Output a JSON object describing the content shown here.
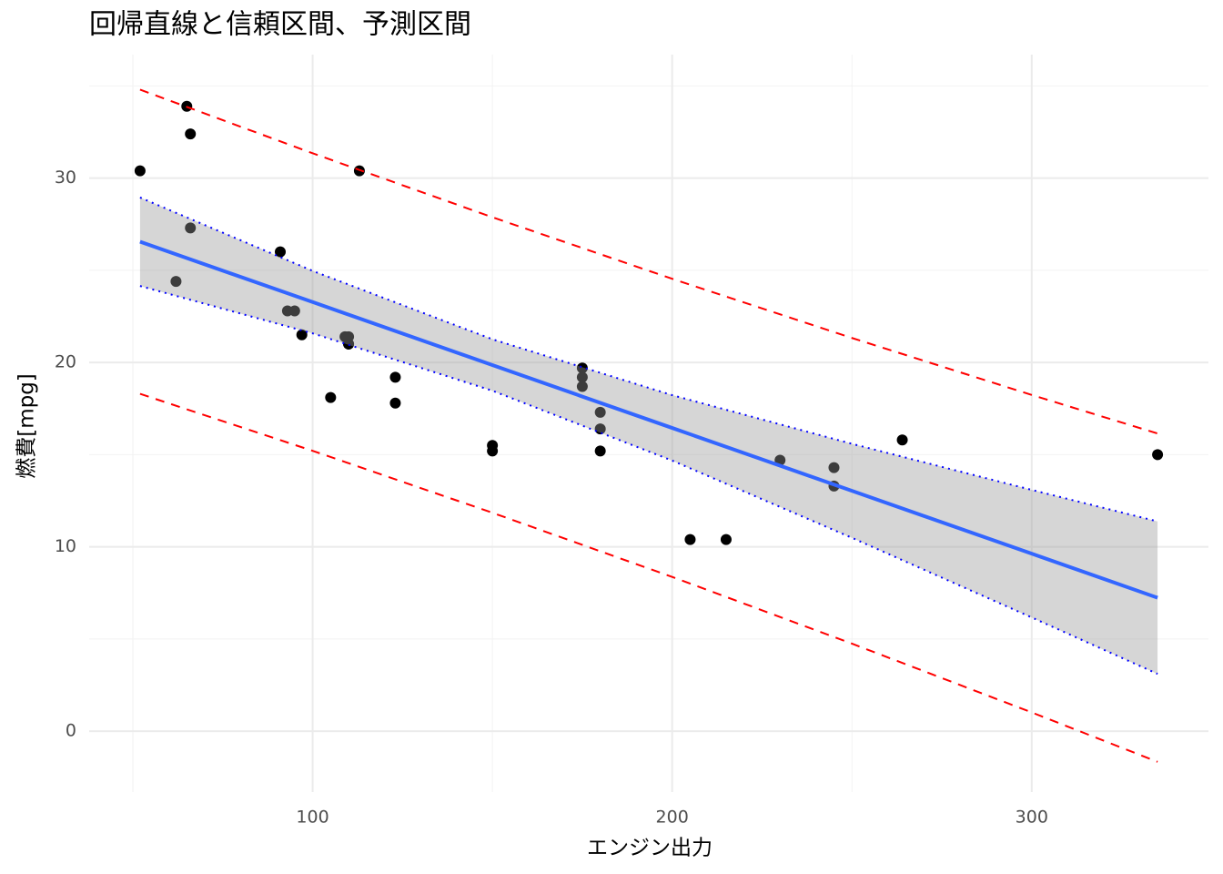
{
  "chart_data": {
    "type": "scatter",
    "title": "回帰直線と信頼区間、予測区間",
    "x_label": "エンジン出力",
    "y_label": "燃費[mpg]",
    "xlim": [
      37.85,
      349.15
    ],
    "ylim": [
      -3.3,
      36.7
    ],
    "xticks": [
      100,
      200,
      300
    ],
    "yticks": [
      0,
      10,
      20,
      30
    ],
    "minor_xticks": [
      50,
      150,
      250
    ],
    "minor_yticks": [
      5,
      15,
      25,
      35
    ],
    "grid": true,
    "points": {
      "color": "#000000",
      "x": [
        110,
        110,
        93,
        110,
        175,
        105,
        245,
        62,
        95,
        123,
        123,
        180,
        180,
        180,
        205,
        215,
        230,
        66,
        52,
        65,
        97,
        150,
        150,
        245,
        175,
        66,
        91,
        113,
        264,
        175,
        335,
        109
      ],
      "y": [
        21.0,
        21.0,
        22.8,
        21.4,
        18.7,
        18.1,
        14.3,
        24.4,
        22.8,
        19.2,
        17.8,
        16.4,
        17.3,
        15.2,
        10.4,
        10.4,
        14.7,
        32.4,
        30.4,
        33.9,
        21.5,
        15.5,
        15.2,
        13.3,
        19.2,
        27.3,
        26.0,
        30.4,
        15.8,
        19.7,
        15.0,
        21.4
      ]
    },
    "fit": {
      "x": [
        52,
        100,
        150,
        200,
        250,
        300,
        335
      ],
      "fit": [
        26.55,
        23.28,
        19.86,
        16.45,
        13.04,
        9.63,
        7.24
      ],
      "conf_lower": [
        24.15,
        21.58,
        18.47,
        14.68,
        10.49,
        6.17,
        3.11
      ],
      "conf_upper": [
        28.95,
        24.97,
        21.26,
        18.23,
        15.59,
        13.09,
        11.38
      ],
      "pred_lower": [
        18.3,
        15.21,
        11.85,
        8.37,
        4.75,
        1.02,
        -1.66
      ],
      "pred_upper": [
        34.8,
        31.35,
        27.88,
        24.54,
        21.33,
        18.24,
        16.15
      ],
      "line_color": "#3366ff",
      "band_color": "#999999",
      "conf_color": "#0000ff",
      "pred_color": "#ff0000"
    }
  }
}
